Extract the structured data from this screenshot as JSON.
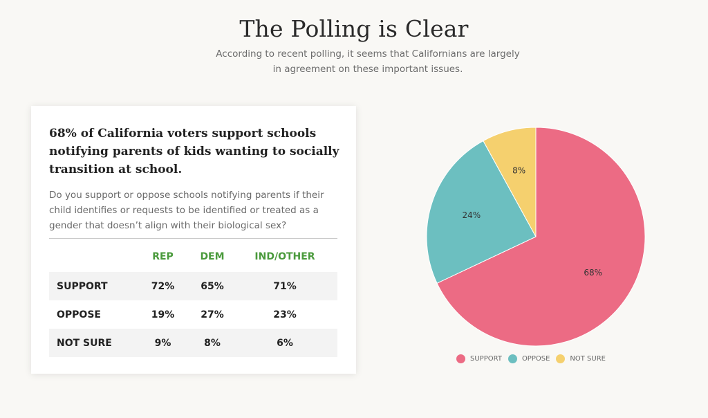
{
  "header": {
    "title": "The Polling is Clear",
    "subtitle": "According to recent polling, it seems that Californians are largely in agreement on these important issues."
  },
  "card": {
    "heading": "68% of California voters support schools notifying parents of kids wanting to socially transition at school.",
    "question": "Do you support or oppose schools notifying parents if their child identifies or requests to be identified or treated as a gender that doesn’t align with their biological sex?",
    "table": {
      "columns": [
        "",
        "REP",
        "DEM",
        "IND/OTHER"
      ],
      "rows": [
        {
          "label": "SUPPORT",
          "values": [
            "72%",
            "65%",
            "71%"
          ]
        },
        {
          "label": "OPPOSE",
          "values": [
            "19%",
            "27%",
            "23%"
          ]
        },
        {
          "label": "NOT SURE",
          "values": [
            "9%",
            "8%",
            "6%"
          ]
        }
      ]
    }
  },
  "chart_data": {
    "type": "pie",
    "categories": [
      "SUPPORT",
      "OPPOSE",
      "NOT SURE"
    ],
    "values": [
      68,
      24,
      8
    ],
    "data_labels": [
      "68%",
      "24%",
      "8%"
    ],
    "colors": [
      "#ec6b84",
      "#6cbfc0",
      "#f5d06e"
    ],
    "start_angle": "12 o'clock",
    "direction": "clockwise",
    "legend_position": "bottom-center",
    "title": ""
  }
}
